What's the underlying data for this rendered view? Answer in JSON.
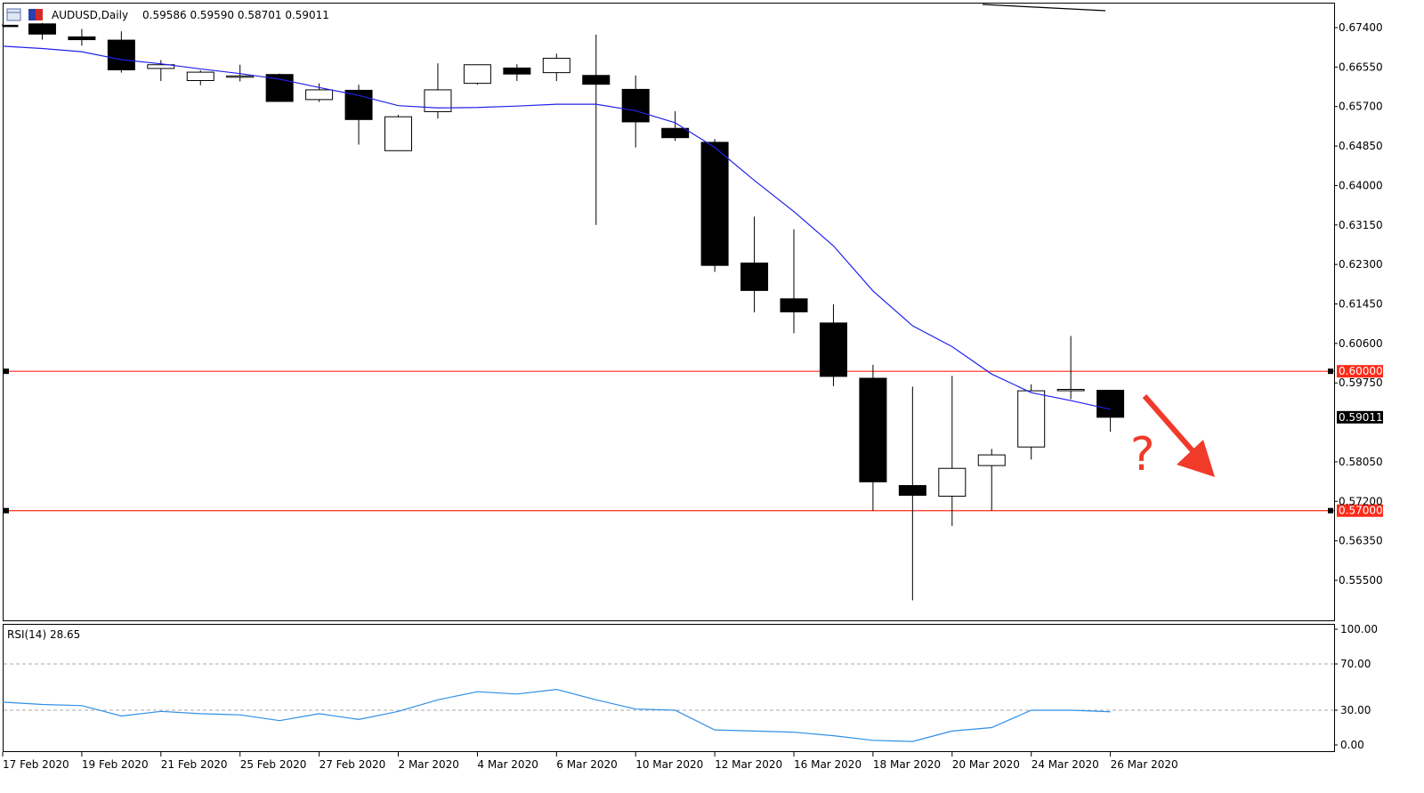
{
  "header": {
    "symbol": "AUDUSD,Daily",
    "ohlc": "0.59586 0.59590 0.58701 0.59011"
  },
  "colors": {
    "level_line": "#ff2a1a",
    "ma_line": "#2222ee",
    "rsi_line": "#2f8fe8",
    "arrow": "#f03a2a",
    "question": "#f03a2a"
  },
  "annotation": {
    "question": "?"
  },
  "chart_data": {
    "type": "candlestick",
    "price_axis": {
      "ticks": [
        "0.67400",
        "0.66550",
        "0.65700",
        "0.64850",
        "0.64000",
        "0.63150",
        "0.62300",
        "0.61450",
        "0.60600",
        "0.59750",
        "0.58050",
        "0.57200",
        "0.56350",
        "0.55500"
      ],
      "range": [
        0.5477,
        0.6808
      ]
    },
    "candles": [
      {
        "o": 0.6745,
        "h": 0.6748,
        "l": 0.6742,
        "c": 0.6744
      },
      {
        "o": 0.6748,
        "h": 0.675,
        "l": 0.6714,
        "c": 0.6726
      },
      {
        "o": 0.672,
        "h": 0.6737,
        "l": 0.6701,
        "c": 0.6714
      },
      {
        "o": 0.6713,
        "h": 0.6732,
        "l": 0.6643,
        "c": 0.6649
      },
      {
        "o": 0.6652,
        "h": 0.667,
        "l": 0.6625,
        "c": 0.666
      },
      {
        "o": 0.6626,
        "h": 0.6648,
        "l": 0.6616,
        "c": 0.6644
      },
      {
        "o": 0.6636,
        "h": 0.666,
        "l": 0.6624,
        "c": 0.6636
      },
      {
        "o": 0.6639,
        "h": 0.6641,
        "l": 0.658,
        "c": 0.6581
      },
      {
        "o": 0.6585,
        "h": 0.662,
        "l": 0.658,
        "c": 0.6606
      },
      {
        "o": 0.6605,
        "h": 0.6617,
        "l": 0.6488,
        "c": 0.6542
      },
      {
        "o": 0.6475,
        "h": 0.6552,
        "l": 0.6475,
        "c": 0.6548
      },
      {
        "o": 0.6559,
        "h": 0.6663,
        "l": 0.6544,
        "c": 0.6606
      },
      {
        "o": 0.662,
        "h": 0.6658,
        "l": 0.6617,
        "c": 0.666
      },
      {
        "o": 0.6653,
        "h": 0.6661,
        "l": 0.6625,
        "c": 0.664
      },
      {
        "o": 0.6643,
        "h": 0.6684,
        "l": 0.6625,
        "c": 0.6674
      },
      {
        "o": 0.6637,
        "h": 0.6725,
        "l": 0.6315,
        "c": 0.6618
      },
      {
        "o": 0.6607,
        "h": 0.6637,
        "l": 0.6482,
        "c": 0.6537
      },
      {
        "o": 0.6523,
        "h": 0.656,
        "l": 0.6496,
        "c": 0.6503
      },
      {
        "o": 0.6493,
        "h": 0.65,
        "l": 0.6214,
        "c": 0.6228
      },
      {
        "o": 0.6233,
        "h": 0.6333,
        "l": 0.6127,
        "c": 0.6174
      },
      {
        "o": 0.6156,
        "h": 0.6306,
        "l": 0.6082,
        "c": 0.6128
      },
      {
        "o": 0.6104,
        "h": 0.6144,
        "l": 0.5968,
        "c": 0.5989
      },
      {
        "o": 0.5985,
        "h": 0.6014,
        "l": 0.57,
        "c": 0.5762
      },
      {
        "o": 0.5754,
        "h": 0.5967,
        "l": 0.5507,
        "c": 0.5733
      },
      {
        "o": 0.5731,
        "h": 0.599,
        "l": 0.5667,
        "c": 0.5791
      },
      {
        "o": 0.5797,
        "h": 0.5833,
        "l": 0.57,
        "c": 0.582
      },
      {
        "o": 0.5837,
        "h": 0.5972,
        "l": 0.581,
        "c": 0.5958
      },
      {
        "o": 0.5961,
        "h": 0.6076,
        "l": 0.594,
        "c": 0.5961
      },
      {
        "o": 0.5959,
        "h": 0.5959,
        "l": 0.587,
        "c": 0.5901
      }
    ],
    "moving_average": [
      0.67,
      0.6695,
      0.6688,
      0.6671,
      0.6662,
      0.6651,
      0.6641,
      0.6629,
      0.6611,
      0.6594,
      0.6572,
      0.6567,
      0.6568,
      0.6571,
      0.6575,
      0.6575,
      0.6561,
      0.6535,
      0.6482,
      0.6411,
      0.6344,
      0.627,
      0.6173,
      0.6098,
      0.6053,
      0.5994,
      0.5954,
      0.5937,
      0.5918
    ],
    "horizontal_levels": [
      {
        "price": 0.6,
        "label": "0.60000"
      },
      {
        "price": 0.57,
        "label": "0.57000"
      }
    ],
    "last_price_label": "0.59011",
    "x_axis_labels": [
      "17 Feb 2020",
      "19 Feb 2020",
      "21 Feb 2020",
      "25 Feb 2020",
      "27 Feb 2020",
      "2 Mar 2020",
      "4 Mar 2020",
      "6 Mar 2020",
      "10 Mar 2020",
      "12 Mar 2020",
      "16 Mar 2020",
      "18 Mar 2020",
      "20 Mar 2020",
      "24 Mar 2020",
      "26 Mar 2020"
    ],
    "rsi": {
      "label": "RSI(14) 28.65",
      "ticks": [
        "100.00",
        "70.00",
        "30.00",
        "0.00"
      ],
      "levels": [
        70,
        30
      ],
      "values": [
        37,
        35,
        34,
        25,
        29,
        27,
        26,
        21,
        27,
        22,
        29,
        39,
        46,
        44,
        48,
        39,
        31,
        30,
        13,
        12,
        11,
        8,
        4,
        3,
        12,
        15,
        30,
        30,
        28.65
      ]
    }
  }
}
